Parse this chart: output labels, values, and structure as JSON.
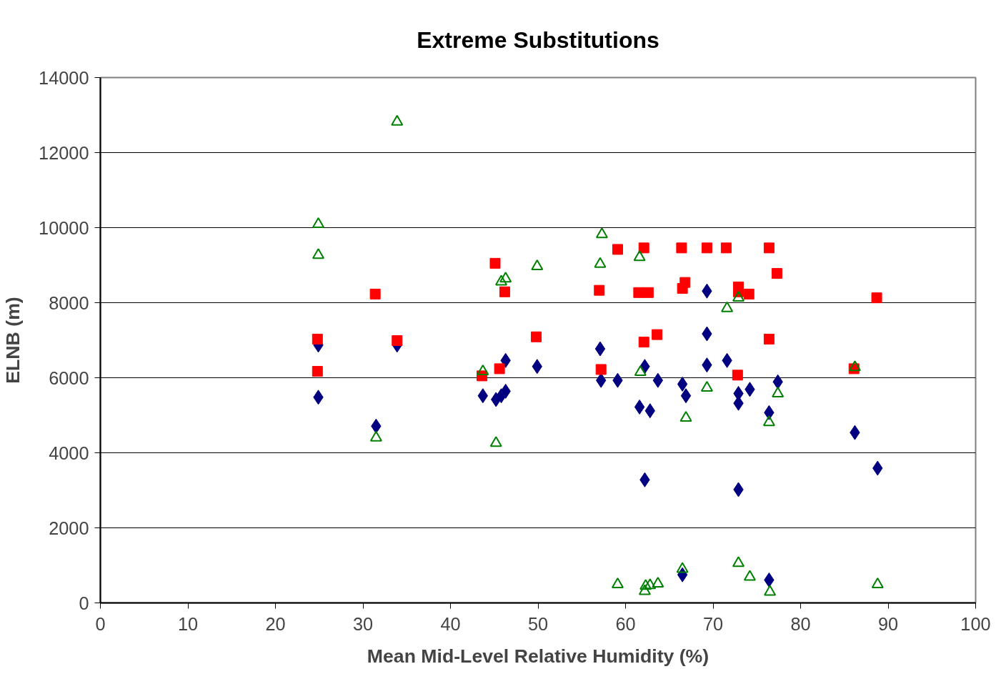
{
  "chart_data": {
    "type": "scatter",
    "title": "Extreme Substitutions",
    "xlabel": "Mean Mid-Level Relative Humidity (%)",
    "ylabel": "ELNB (m)",
    "xlim": [
      0,
      100
    ],
    "xticks": [
      0,
      10,
      20,
      30,
      40,
      50,
      60,
      70,
      80,
      90,
      100
    ],
    "ylim": [
      0,
      14000
    ],
    "yticks": [
      0,
      2000,
      4000,
      6000,
      8000,
      10000,
      12000,
      14000
    ],
    "grid": "y",
    "series": [
      {
        "color": "#000080",
        "marker": "diamond",
        "x": [
          24.9,
          24.9,
          31.5,
          33.9,
          43.7,
          45.2,
          45.8,
          46.3,
          46.3,
          49.9,
          57.1,
          57.2,
          59.1,
          61.6,
          62.2,
          62.2,
          62.8,
          63.7,
          66.5,
          66.5,
          66.9,
          69.3,
          69.3,
          69.3,
          71.6,
          72.9,
          72.9,
          72.9,
          74.2,
          76.4,
          76.4,
          77.4,
          86.2,
          88.8
        ],
        "values": [
          6870,
          5480,
          4710,
          6870,
          5520,
          5420,
          5520,
          5640,
          6460,
          6300,
          6770,
          5930,
          5930,
          5220,
          6300,
          3280,
          5120,
          5930,
          5830,
          750,
          5520,
          8310,
          7170,
          6340,
          6460,
          5580,
          5320,
          3020,
          5690,
          5070,
          610,
          5890,
          4540,
          3590
        ]
      },
      {
        "color": "#ff0000",
        "marker": "square",
        "x": [
          24.8,
          24.8,
          31.4,
          33.9,
          43.6,
          45.1,
          46.2,
          45.6,
          49.8,
          57.0,
          57.2,
          59.1,
          61.5,
          62.1,
          62.1,
          62.6,
          63.6,
          66.4,
          66.5,
          66.8,
          69.3,
          71.5,
          72.9,
          72.9,
          74.1,
          72.8,
          76.4,
          76.4,
          77.3,
          86.1,
          88.7
        ],
        "values": [
          7030,
          6170,
          8230,
          6990,
          6050,
          9050,
          8290,
          6240,
          7090,
          8330,
          6220,
          9420,
          8270,
          9460,
          6950,
          8270,
          7150,
          9460,
          8380,
          8540,
          9460,
          9460,
          8420,
          8290,
          8230,
          6070,
          9460,
          7030,
          8780,
          6240,
          8130
        ]
      },
      {
        "color": "#008000",
        "marker": "triangle",
        "x": [
          24.9,
          24.9,
          31.5,
          33.9,
          43.7,
          45.2,
          45.8,
          46.3,
          49.9,
          57.1,
          57.3,
          59.1,
          61.6,
          61.7,
          62.2,
          62.3,
          62.8,
          63.7,
          66.5,
          66.9,
          69.3,
          71.6,
          72.9,
          72.9,
          74.2,
          76.4,
          76.5,
          77.4,
          86.2,
          88.8
        ],
        "values": [
          10090,
          9270,
          4400,
          12820,
          6170,
          4260,
          8560,
          8640,
          8970,
          9030,
          9820,
          490,
          9210,
          6150,
          310,
          450,
          470,
          510,
          900,
          4930,
          5730,
          7850,
          8130,
          1060,
          690,
          4810,
          290,
          5580,
          6280,
          490
        ]
      }
    ]
  }
}
